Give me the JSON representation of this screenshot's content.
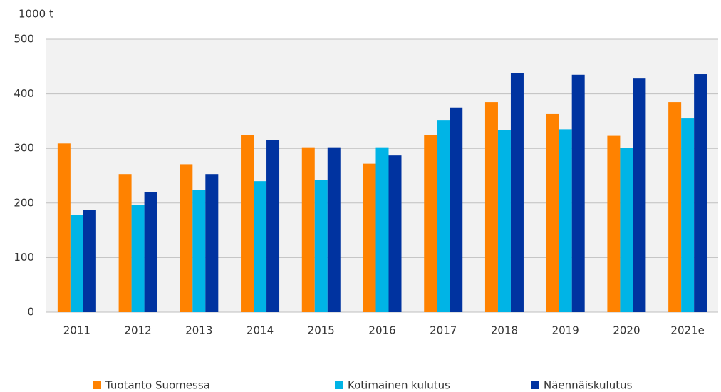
{
  "chart_data": {
    "type": "bar",
    "y_label": "1000 t",
    "categories": [
      "2011",
      "2012",
      "2013",
      "2014",
      "2015",
      "2016",
      "2017",
      "2018",
      "2019",
      "2020",
      "2021e"
    ],
    "series": [
      {
        "name": "Tuotanto Suomessa",
        "color": "#ff8200",
        "values": [
          309,
          253,
          271,
          325,
          302,
          272,
          325,
          385,
          363,
          323,
          385
        ]
      },
      {
        "name": "Kotimainen kulutus",
        "color": "#00b4e6",
        "values": [
          178,
          197,
          224,
          240,
          242,
          302,
          351,
          333,
          335,
          301,
          355
        ]
      },
      {
        "name": "Näennäiskulutus",
        "color": "#0033a0",
        "values": [
          187,
          220,
          253,
          315,
          302,
          287,
          375,
          438,
          435,
          428,
          436
        ]
      }
    ],
    "ylim": [
      0,
      500
    ],
    "yticks": [
      0,
      100,
      200,
      300,
      400,
      500
    ],
    "grid": true,
    "legend": "bottom"
  }
}
